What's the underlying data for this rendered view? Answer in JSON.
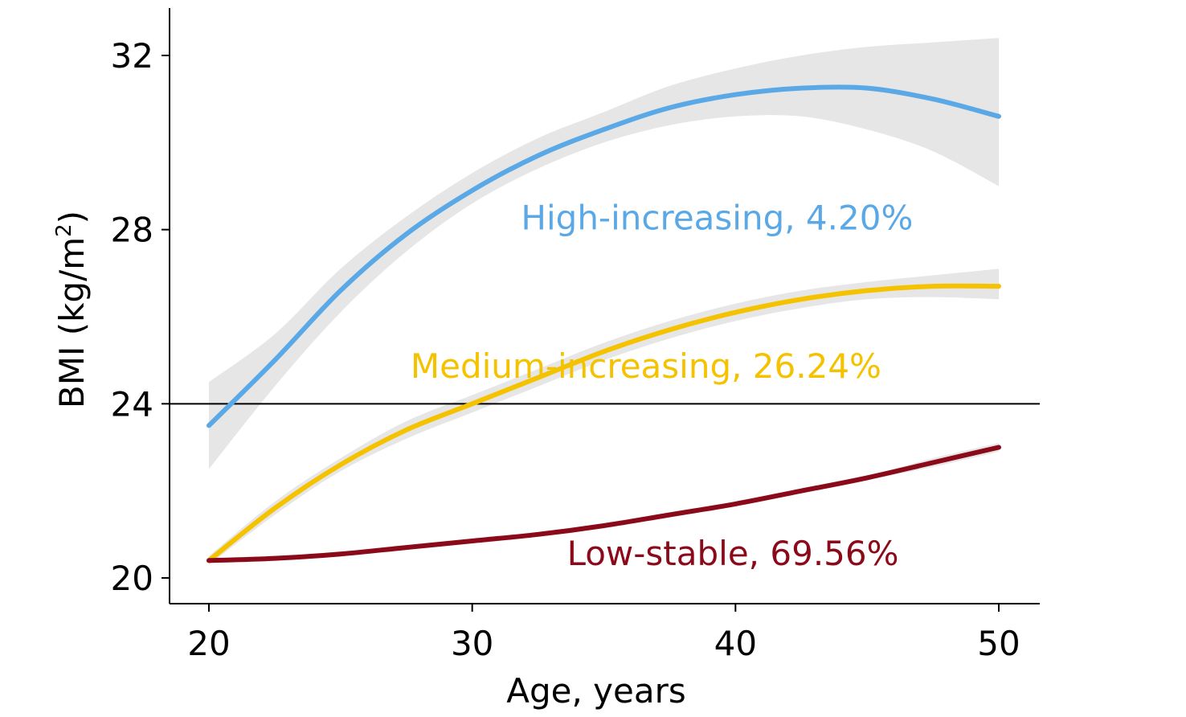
{
  "chart_data": {
    "type": "line",
    "title": "",
    "xlabel": "Age, years",
    "ylabel_main": "BMI (kg/m",
    "ylabel_sup": "2",
    "ylabel_close": ")",
    "xlim": [
      18.5,
      51.5
    ],
    "ylim": [
      19.4,
      33.2
    ],
    "xticks": [
      20,
      30,
      40,
      50
    ],
    "xtick_labels": [
      "20",
      "30",
      "40",
      "50"
    ],
    "yticks": [
      20,
      24,
      28,
      32
    ],
    "ytick_labels": [
      "20",
      "24",
      "28",
      "32"
    ],
    "reference_line": {
      "y": 24,
      "color": "#000000"
    },
    "grid": false,
    "series": [
      {
        "name": "High-increasing, 4.20%",
        "color": "#5aa9e6",
        "label_color": "#5aa9e6",
        "label_anchor": [
          39.3,
          28.0
        ],
        "x": [
          20,
          22.5,
          25,
          27.5,
          30,
          32.5,
          35,
          37.5,
          40,
          42.5,
          45,
          47.5,
          50
        ],
        "y": [
          23.5,
          25.0,
          26.6,
          27.9,
          28.9,
          29.7,
          30.3,
          30.8,
          31.1,
          31.25,
          31.25,
          31.0,
          30.6
        ],
        "ci_lower": [
          22.5,
          24.4,
          26.1,
          27.5,
          28.6,
          29.4,
          30.0,
          30.4,
          30.6,
          30.6,
          30.3,
          29.8,
          29.0
        ],
        "ci_upper": [
          24.5,
          25.6,
          27.1,
          28.3,
          29.3,
          30.1,
          30.7,
          31.3,
          31.7,
          32.0,
          32.2,
          32.3,
          32.4
        ]
      },
      {
        "name": "Medium-increasing, 26.24%",
        "color": "#f5c200",
        "label_color": "#f5c200",
        "label_anchor": [
          36.6,
          24.6
        ],
        "x": [
          20,
          22.5,
          25,
          27.5,
          30,
          32.5,
          35,
          37.5,
          40,
          42.5,
          45,
          47.5,
          50
        ],
        "y": [
          20.4,
          21.6,
          22.6,
          23.4,
          24.0,
          24.6,
          25.2,
          25.7,
          26.1,
          26.4,
          26.6,
          26.7,
          26.7
        ],
        "ci_lower": [
          20.3,
          21.45,
          22.45,
          23.2,
          23.8,
          24.4,
          25.0,
          25.5,
          25.9,
          26.2,
          26.4,
          26.45,
          26.4
        ],
        "ci_upper": [
          20.5,
          21.75,
          22.75,
          23.6,
          24.2,
          24.8,
          25.4,
          25.9,
          26.3,
          26.6,
          26.8,
          26.95,
          27.1
        ]
      },
      {
        "name": "Low-stable, 69.56%",
        "color": "#8b0a1a",
        "label_color": "#8b0a1a",
        "label_anchor": [
          39.9,
          20.3
        ],
        "x": [
          20,
          22.5,
          25,
          27.5,
          30,
          32.5,
          35,
          37.5,
          40,
          42.5,
          45,
          47.5,
          50
        ],
        "y": [
          20.4,
          20.45,
          20.55,
          20.7,
          20.85,
          21.0,
          21.2,
          21.45,
          21.7,
          22.0,
          22.3,
          22.65,
          23.0
        ],
        "ci_lower": [
          20.35,
          20.4,
          20.5,
          20.65,
          20.8,
          20.95,
          21.15,
          21.4,
          21.65,
          21.95,
          22.25,
          22.55,
          22.9
        ],
        "ci_upper": [
          20.45,
          20.5,
          20.6,
          20.75,
          20.9,
          21.05,
          21.25,
          21.5,
          21.75,
          22.05,
          22.35,
          22.75,
          23.1
        ]
      }
    ]
  }
}
